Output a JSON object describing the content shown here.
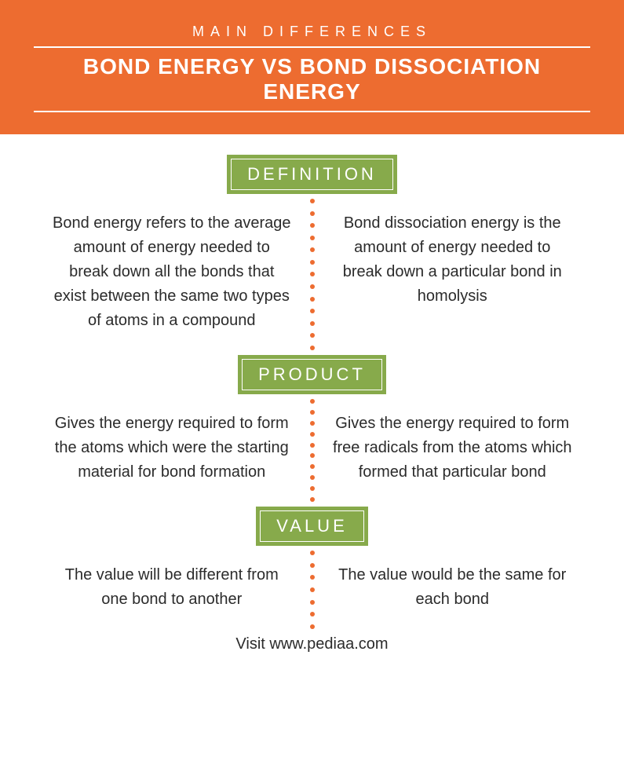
{
  "colors": {
    "header_bg": "#ed6c30",
    "tag_bg": "#87aa4b",
    "dot": "#ed6c30",
    "white": "#ffffff",
    "text": "#2b2b2b"
  },
  "header": {
    "eyebrow": "MAIN DIFFERENCES",
    "title": "BOND ENERGY VS BOND DISSOCIATION ENERGY"
  },
  "sections": [
    {
      "tag": "DEFINITION",
      "left": "Bond energy refers to the average amount of energy needed to break down all the bonds that exist between the same two types of atoms in a compound",
      "right": "Bond dissociation energy is the amount of energy needed to break down a particular bond in homolysis",
      "dots": 13
    },
    {
      "tag": "PRODUCT",
      "left": "Gives the energy required to form the atoms which were the starting material for bond formation",
      "right": "Gives the energy required to form free radicals from the atoms which formed that particular bond",
      "dots": 10
    },
    {
      "tag": "VALUE",
      "left": "The value will be different from one bond to another",
      "right": "The value would be the same for each bond",
      "dots": 7
    }
  ],
  "footer": "Visit www.pediaa.com"
}
